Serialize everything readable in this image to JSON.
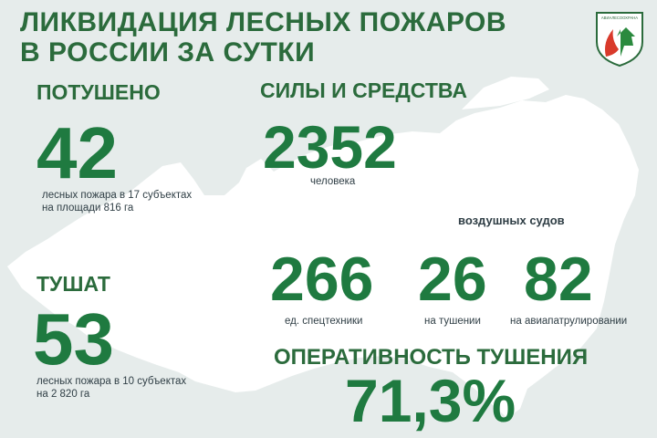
{
  "header": {
    "title_line1": "ЛИКВИДАЦИЯ ЛЕСНЫХ ПОЖАРОВ",
    "title_line2": "В РОССИИ ЗА СУТКИ",
    "logo_text": "АВИАЛЕСООХРАНА"
  },
  "extinguished": {
    "heading": "ПОТУШЕНО",
    "value": "42",
    "desc_line1": "лесных пожара в 17 субъектах",
    "desc_line2": "на площади  816 га"
  },
  "extinguishing": {
    "heading": "ТУШАТ",
    "value": "53",
    "desc_line1": "лесных пожара в 10 субъектах",
    "desc_line2": "на 2 820 га"
  },
  "forces": {
    "heading": "СИЛЫ И СРЕДСТВА",
    "people_value": "2352",
    "people_label": "человека",
    "aircraft_label": "воздушных судов",
    "equipment_value": "266",
    "equipment_label": "ед. спецтехники",
    "aircraft_fire_value": "26",
    "aircraft_fire_label": "на тушении",
    "aircraft_patrol_value": "82",
    "aircraft_patrol_label": "на авиапатрулировании"
  },
  "efficiency": {
    "heading": "ОПЕРАТИВНОСТЬ  ТУШЕНИЯ",
    "value": "71,3%"
  },
  "colors": {
    "background": "#e6eceb",
    "map_fill": "#ffffff",
    "accent_green": "#1f7a40",
    "logo_red": "#d93a2b"
  }
}
